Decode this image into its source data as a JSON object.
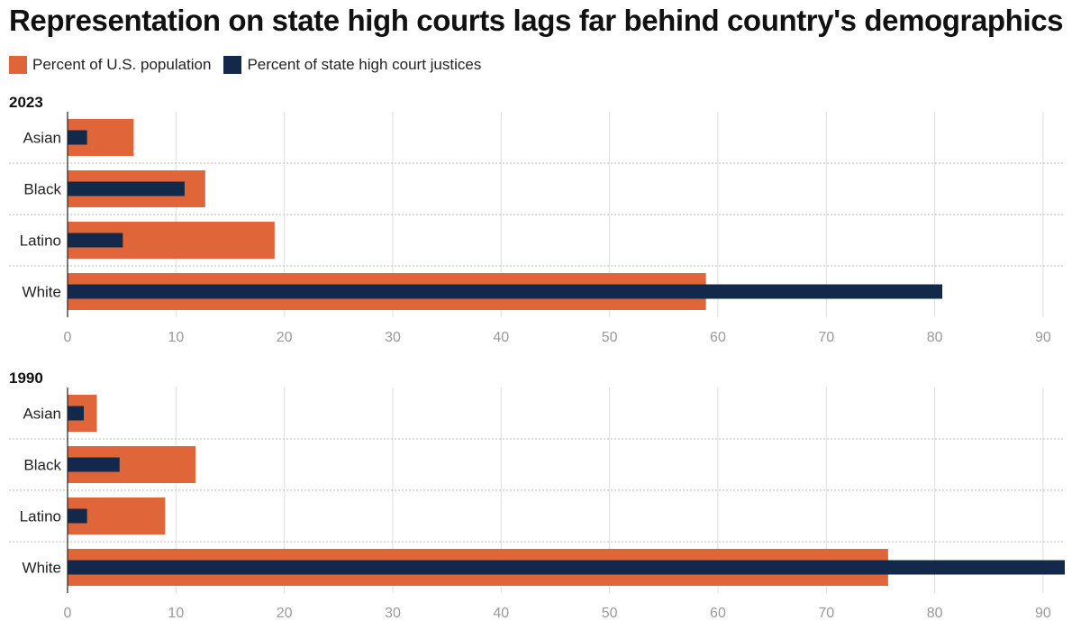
{
  "title": "Representation on state high courts lags far behind country's demographics",
  "legend": [
    {
      "label": "Percent of U.S. population",
      "color": "#e0663a"
    },
    {
      "label": "Percent of state high court justices",
      "color": "#13294b"
    }
  ],
  "chart_data": [
    {
      "type": "bar",
      "orientation": "horizontal",
      "title": "2023",
      "categories": [
        "Asian",
        "Black",
        "Latino",
        "White"
      ],
      "series": [
        {
          "name": "Percent of U.S. population",
          "values": [
            6.1,
            12.7,
            19.1,
            58.9
          ]
        },
        {
          "name": "Percent of state high court justices",
          "values": [
            1.8,
            10.8,
            5.1,
            80.7
          ]
        }
      ],
      "xlim": [
        0,
        92
      ],
      "xticks": [
        0,
        10,
        20,
        30,
        40,
        50,
        60,
        70,
        80,
        90
      ],
      "grid": true,
      "legend_position": "top-left"
    },
    {
      "type": "bar",
      "orientation": "horizontal",
      "title": "1990",
      "categories": [
        "Asian",
        "Black",
        "Latino",
        "White"
      ],
      "series": [
        {
          "name": "Percent of U.S. population",
          "values": [
            2.7,
            11.8,
            9.0,
            75.7
          ]
        },
        {
          "name": "Percent of state high court justices",
          "values": [
            1.5,
            4.8,
            1.8,
            92.0
          ]
        }
      ],
      "xlim": [
        0,
        92
      ],
      "xticks": [
        0,
        10,
        20,
        30,
        40,
        50,
        60,
        70,
        80,
        90
      ],
      "grid": true,
      "legend_position": "top-left"
    }
  ]
}
